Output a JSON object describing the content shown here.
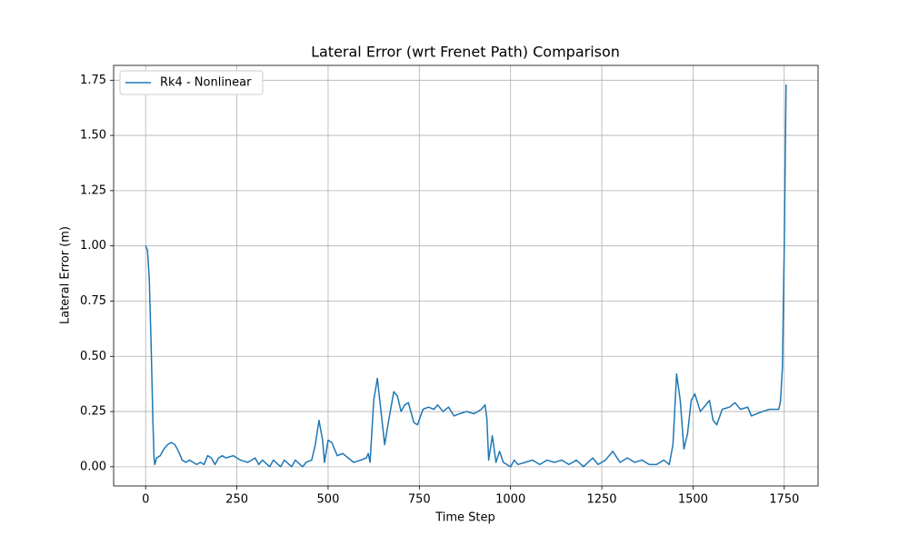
{
  "chart_data": {
    "type": "line",
    "title": "Lateral Error (wrt Frenet Path) Comparison",
    "x_label": "Time Step",
    "y_label": "Lateral Error (m)",
    "xlim": [
      -87.75,
      1842.75
    ],
    "ylim": [
      -0.087,
      1.817
    ],
    "xticks": [
      0,
      250,
      500,
      750,
      1000,
      1250,
      1500,
      1750
    ],
    "yticks": [
      {
        "value": 0,
        "label": "0.00"
      },
      {
        "value": 0.25,
        "label": "0.25"
      },
      {
        "value": 0.5,
        "label": "0.50"
      },
      {
        "value": 0.75,
        "label": "0.75"
      },
      {
        "value": 1,
        "label": "1.00"
      },
      {
        "value": 1.25,
        "label": "1.25"
      },
      {
        "value": 1.5,
        "label": "1.50"
      },
      {
        "value": 1.75,
        "label": "1.75"
      }
    ],
    "grid": true,
    "legend": "upper left",
    "x": [
      0,
      5,
      10,
      15,
      20,
      23,
      25,
      30,
      40,
      50,
      60,
      70,
      80,
      90,
      100,
      110,
      120,
      130,
      140,
      150,
      160,
      170,
      180,
      190,
      200,
      210,
      220,
      240,
      250,
      260,
      280,
      300,
      310,
      320,
      340,
      350,
      370,
      380,
      400,
      410,
      430,
      440,
      455,
      465,
      475,
      485,
      490,
      500,
      510,
      525,
      540,
      555,
      570,
      590,
      605,
      610,
      615,
      625,
      635,
      645,
      655,
      665,
      680,
      690,
      700,
      710,
      720,
      735,
      745,
      760,
      775,
      790,
      800,
      815,
      830,
      845,
      860,
      880,
      900,
      920,
      930,
      935,
      940,
      950,
      960,
      970,
      980,
      1000,
      1010,
      1020,
      1040,
      1060,
      1080,
      1100,
      1120,
      1140,
      1160,
      1180,
      1200,
      1225,
      1240,
      1260,
      1280,
      1300,
      1320,
      1340,
      1360,
      1380,
      1400,
      1420,
      1435,
      1445,
      1455,
      1465,
      1475,
      1485,
      1495,
      1505,
      1520,
      1535,
      1545,
      1555,
      1565,
      1580,
      1600,
      1615,
      1630,
      1650,
      1660,
      1675,
      1690,
      1710,
      1735,
      1740,
      1745,
      1750,
      1755
    ],
    "series": [
      {
        "name": "Rk4 - Nonlinear",
        "color": "#1f77b4",
        "values": [
          1.0,
          0.98,
          0.85,
          0.55,
          0.2,
          0.04,
          0.01,
          0.04,
          0.05,
          0.08,
          0.1,
          0.11,
          0.1,
          0.07,
          0.03,
          0.02,
          0.03,
          0.02,
          0.01,
          0.02,
          0.01,
          0.05,
          0.04,
          0.01,
          0.04,
          0.05,
          0.04,
          0.05,
          0.04,
          0.03,
          0.02,
          0.04,
          0.01,
          0.03,
          0.0,
          0.03,
          0.0,
          0.03,
          0.0,
          0.03,
          0.0,
          0.02,
          0.03,
          0.1,
          0.21,
          0.12,
          0.02,
          0.12,
          0.11,
          0.05,
          0.06,
          0.04,
          0.02,
          0.03,
          0.04,
          0.06,
          0.02,
          0.3,
          0.4,
          0.25,
          0.1,
          0.2,
          0.34,
          0.32,
          0.25,
          0.28,
          0.29,
          0.2,
          0.19,
          0.26,
          0.27,
          0.26,
          0.28,
          0.25,
          0.27,
          0.23,
          0.24,
          0.25,
          0.24,
          0.26,
          0.28,
          0.22,
          0.03,
          0.14,
          0.02,
          0.07,
          0.02,
          0.0,
          0.03,
          0.01,
          0.02,
          0.03,
          0.01,
          0.03,
          0.02,
          0.03,
          0.01,
          0.03,
          0.0,
          0.04,
          0.01,
          0.03,
          0.07,
          0.02,
          0.04,
          0.02,
          0.03,
          0.01,
          0.01,
          0.03,
          0.01,
          0.1,
          0.42,
          0.3,
          0.08,
          0.15,
          0.3,
          0.33,
          0.25,
          0.28,
          0.3,
          0.21,
          0.19,
          0.26,
          0.27,
          0.29,
          0.26,
          0.27,
          0.23,
          0.24,
          0.25,
          0.26,
          0.26,
          0.3,
          0.45,
          1.0,
          1.73
        ]
      }
    ]
  }
}
